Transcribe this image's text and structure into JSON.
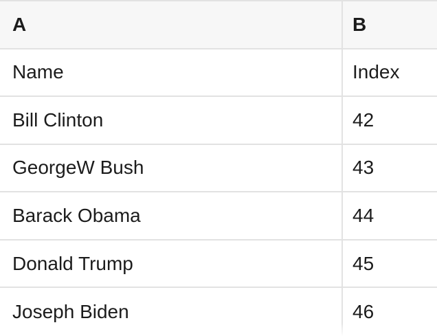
{
  "table": {
    "headers": [
      "A",
      "B"
    ],
    "rows": [
      {
        "name": "Name",
        "index": "Index"
      },
      {
        "name": "Bill Clinton",
        "index": "42"
      },
      {
        "name": "GeorgeW Bush",
        "index": "43"
      },
      {
        "name": "Barack Obama",
        "index": "44"
      },
      {
        "name": "Donald Trump",
        "index": "45"
      },
      {
        "name": "Joseph Biden",
        "index": "46"
      }
    ]
  },
  "colors": {
    "header_bg": "#f7f7f7",
    "border": "#e2e2e2",
    "text": "#1c1c1c",
    "row_bg": "#ffffff"
  }
}
